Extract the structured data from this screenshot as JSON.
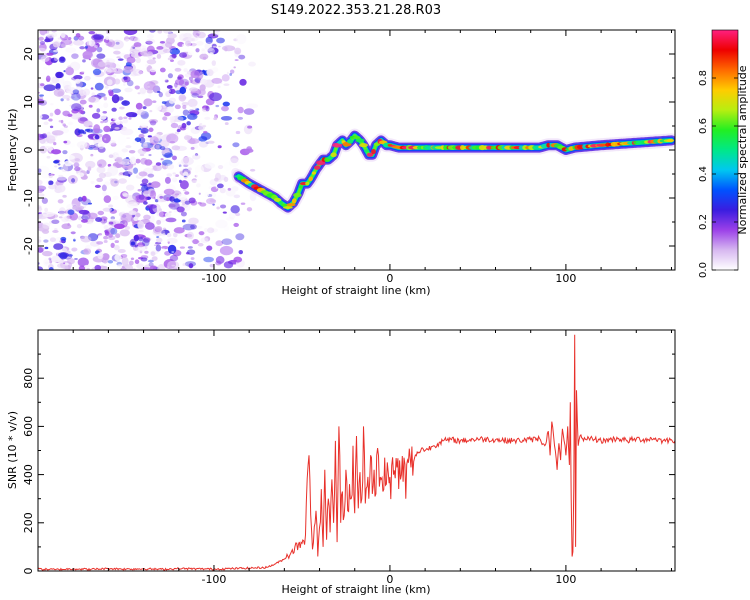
{
  "title": "S149.2022.353.21.28.R03",
  "colors": {
    "snr_line": "#e8302a",
    "axis": "#000000",
    "background": "#ffffff"
  },
  "chart_data": [
    {
      "type": "heatmap",
      "xlabel": "Height of straight line (km)",
      "ylabel": "Frequency (Hz)",
      "xlim": [
        -200,
        162
      ],
      "ylim": [
        -25,
        25
      ],
      "x_ticks": [
        -100,
        0,
        100
      ],
      "x_tick_labels": [
        "-100",
        "0",
        "100"
      ],
      "y_ticks": [
        -20,
        -10,
        0,
        10,
        20
      ],
      "y_tick_labels": [
        "-20",
        "-10",
        "0",
        "10",
        "20"
      ],
      "ridge": {
        "x": [
          -86,
          -80,
          -75,
          -70,
          -65,
          -62,
          -58,
          -55,
          -52,
          -50,
          -47,
          -45,
          -42,
          -40,
          -38,
          -35,
          -32,
          -30,
          -27,
          -25,
          -22,
          -20,
          -17,
          -15,
          -12,
          -10,
          -8,
          -5,
          -2,
          0,
          5,
          10,
          20,
          30,
          50,
          70,
          85,
          90,
          95,
          100,
          105,
          120,
          140,
          160
        ],
        "y": [
          -5.5,
          -7,
          -8,
          -9,
          -10,
          -11,
          -12,
          -11,
          -9,
          -7,
          -7,
          -6,
          -4,
          -3,
          -2,
          -2,
          -1,
          1,
          2,
          1,
          2,
          3,
          2,
          1,
          -1,
          -1,
          1,
          2,
          1,
          1,
          0.5,
          0.5,
          0.5,
          0.5,
          0.5,
          0.5,
          0.5,
          1,
          1,
          0,
          0.5,
          1,
          1.5,
          2
        ]
      },
      "noise_region_x": [
        -200,
        -75
      ],
      "colorbar": {
        "label": "Normalized spectral amplitude",
        "ticks": [
          0.0,
          0.2,
          0.4,
          0.6,
          0.8
        ],
        "tick_labels": [
          "0.0",
          "0.2",
          "0.4",
          "0.6",
          "0.8"
        ],
        "range": [
          0,
          1
        ],
        "colormap": [
          "#ffffff",
          "#d7b8f0",
          "#9b40e8",
          "#3a1de0",
          "#0052ff",
          "#00c8f0",
          "#00e888",
          "#22ef22",
          "#b8ee10",
          "#ffcc00",
          "#ff6a00",
          "#ee0000",
          "#ff2080"
        ]
      }
    },
    {
      "type": "line",
      "xlabel": "Height of straight line (km)",
      "ylabel": "SNR (10 * v/v)",
      "xlim": [
        -200,
        162
      ],
      "ylim": [
        0,
        1000
      ],
      "x_ticks": [
        -100,
        0,
        100
      ],
      "x_tick_labels": [
        "-100",
        "0",
        "100"
      ],
      "y_ticks": [
        0,
        200,
        400,
        600,
        800
      ],
      "y_tick_labels": [
        "0",
        "200",
        "400",
        "600",
        "800"
      ],
      "series": [
        {
          "x": [
            -200,
            -190,
            -180,
            -170,
            -160,
            -150,
            -140,
            -130,
            -120,
            -110,
            -100,
            -90,
            -80,
            -70,
            -65,
            -60,
            -56,
            -52,
            -48,
            -46,
            -44,
            -42,
            -41,
            -40,
            -39,
            -38,
            -37,
            -36,
            -35,
            -34,
            -33,
            -32,
            -31,
            -30,
            -29,
            -28,
            -27,
            -26,
            -25,
            -24,
            -23,
            -22,
            -21,
            -20,
            -19,
            -18,
            -17,
            -16,
            -15,
            -14,
            -13,
            -12,
            -11,
            -10,
            -9,
            -8,
            -7,
            -6,
            -5,
            -4,
            -3,
            -2,
            -1,
            0,
            2,
            4,
            6,
            8,
            9,
            10,
            12,
            14,
            16,
            18,
            20,
            25,
            30,
            35,
            40,
            50,
            60,
            70,
            80,
            85,
            88,
            90,
            91,
            92,
            93,
            94,
            95,
            96,
            97,
            98,
            99,
            100,
            101,
            102,
            102.5,
            103,
            103.5,
            104,
            104.5,
            105,
            105.5,
            106,
            107,
            108,
            110,
            112,
            115,
            120,
            125,
            130,
            135,
            140,
            145,
            150,
            155,
            160,
            162
          ],
          "y": [
            8,
            6,
            9,
            7,
            10,
            8,
            9,
            7,
            10,
            9,
            8,
            10,
            12,
            15,
            30,
            50,
            80,
            110,
            150,
            480,
            90,
            250,
            60,
            180,
            340,
            100,
            420,
            130,
            300,
            160,
            380,
            200,
            540,
            120,
            600,
            200,
            330,
            230,
            420,
            250,
            360,
            300,
            520,
            240,
            560,
            260,
            410,
            300,
            600,
            280,
            350,
            300,
            480,
            320,
            420,
            320,
            510,
            350,
            380,
            330,
            470,
            360,
            410,
            390,
            400,
            430,
            380,
            470,
            300,
            460,
            430,
            470,
            490,
            510,
            500,
            520,
            540,
            545,
            540,
            548,
            545,
            540,
            545,
            550,
            520,
            580,
            480,
            620,
            560,
            500,
            420,
            530,
            460,
            590,
            540,
            480,
            600,
            440,
            700,
            300,
            60,
            80,
            350,
            980,
            100,
            750,
            520,
            560,
            540,
            545,
            550,
            540,
            545,
            550,
            540,
            548,
            545,
            550,
            540,
            545,
            542
          ]
        }
      ]
    }
  ]
}
